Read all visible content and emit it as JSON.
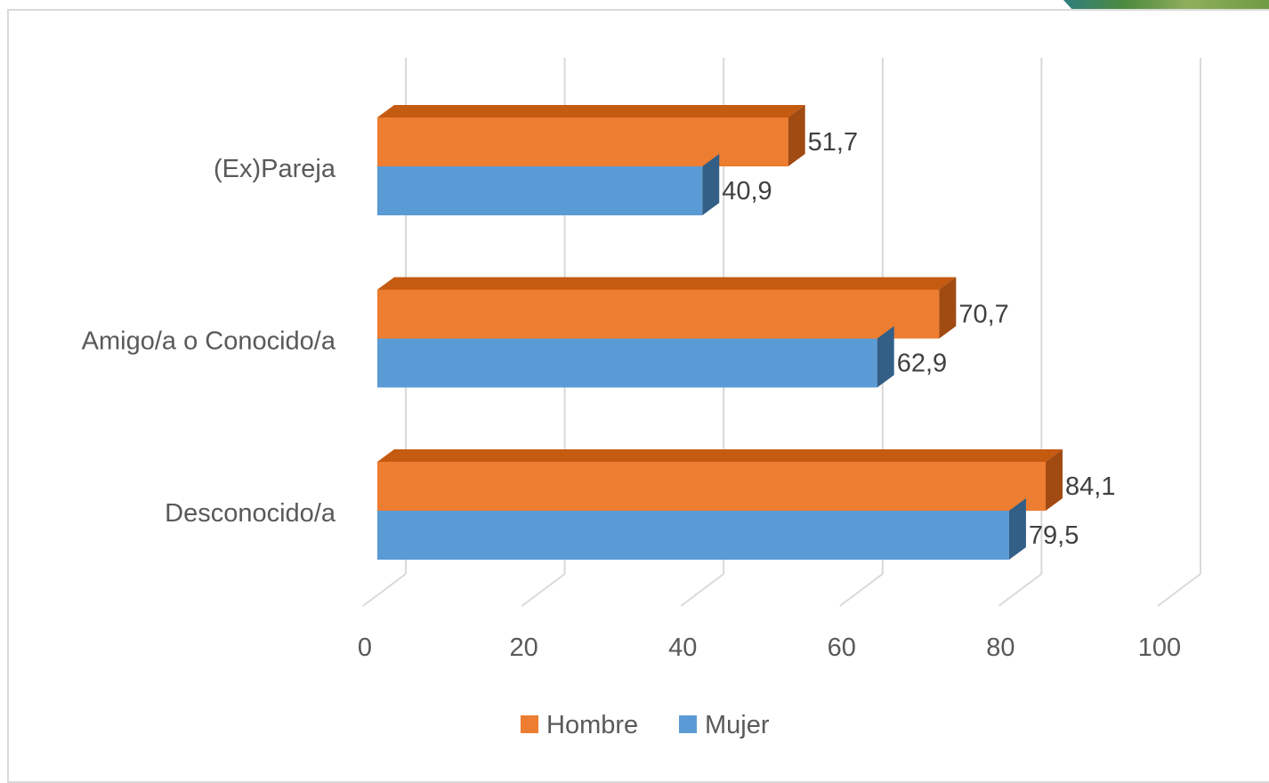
{
  "chart_data": {
    "type": "bar",
    "orientation": "horizontal",
    "style": "3d-clustered",
    "categories": [
      "Desconocido/a",
      "Amigo/a o Conocido/a",
      "(Ex)Pareja"
    ],
    "series": [
      {
        "name": "Hombre",
        "values": [
          84.1,
          70.7,
          51.7
        ],
        "labels": [
          "84,1",
          "70,7",
          "51,7"
        ],
        "color": "#ed7d31",
        "top_color": "#c55a11",
        "side_color": "#a14a12"
      },
      {
        "name": "Mujer",
        "values": [
          79.5,
          62.9,
          40.9
        ],
        "labels": [
          "79,5",
          "62,9",
          "40,9"
        ],
        "color": "#5b9bd5",
        "top_color": "#41719c",
        "side_color": "#335f87"
      }
    ],
    "xticks": [
      0,
      20,
      40,
      60,
      80,
      100
    ],
    "xtick_labels": [
      "0",
      "20",
      "40",
      "60",
      "80",
      "100"
    ],
    "xlim": [
      0,
      100
    ],
    "grid": true,
    "legend_position": "bottom"
  }
}
